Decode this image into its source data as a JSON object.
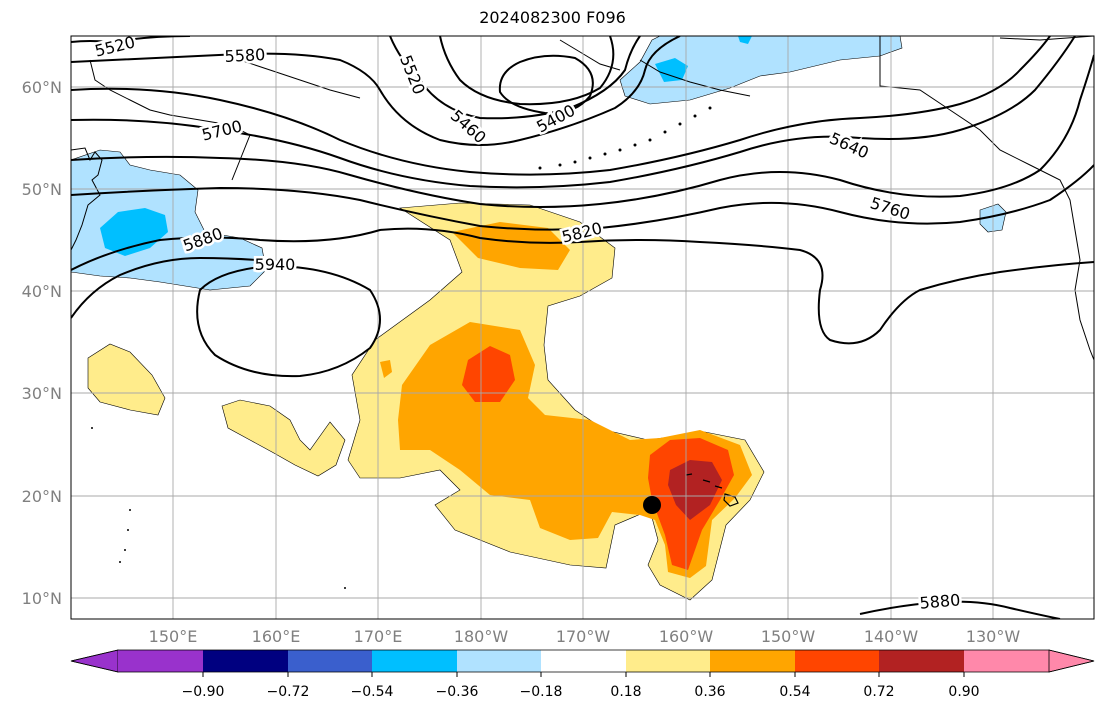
{
  "title": "2024082300 F096",
  "lon_ticks": [
    "150°E",
    "160°E",
    "170°E",
    "180°W",
    "170°W",
    "160°W",
    "150°W",
    "140°W",
    "130°W"
  ],
  "lat_ticks": [
    "60°N",
    "50°N",
    "40°N",
    "30°N",
    "20°N",
    "10°N"
  ],
  "contour_labels": [
    "5520",
    "5580",
    "5520",
    "5460",
    "5400",
    "5700",
    "5640",
    "5760",
    "5820",
    "5880",
    "5940",
    "5880"
  ],
  "colorbar": {
    "ticks": [
      "−0.90",
      "−0.72",
      "−0.54",
      "−0.36",
      "−0.18",
      "0.18",
      "0.36",
      "0.54",
      "0.72",
      "0.90"
    ],
    "colors": [
      "#9932cc",
      "#000080",
      "#3a5fcd",
      "#00bfff",
      "#b0e2ff",
      "#ffffff",
      "#ffec8b",
      "#ffa500",
      "#ff4500",
      "#b22222",
      "#ff88aa"
    ]
  },
  "colors": {
    "light_blue": "#b0e2ff",
    "blue": "#00bfff",
    "yellow": "#ffec8b",
    "orange": "#ffa500",
    "red_orange": "#ff4500",
    "dark_red": "#b22222",
    "grid": "#a8a8a8"
  }
}
